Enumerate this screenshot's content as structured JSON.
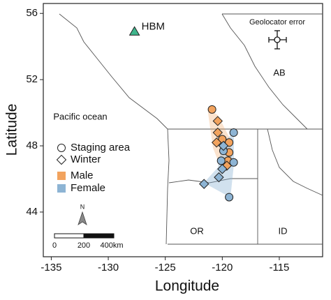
{
  "chart_data": {
    "type": "scatter",
    "xlabel": "Longitude",
    "ylabel": "Latitude",
    "xlim": [
      -135.7,
      -111.2
    ],
    "ylim": [
      41.3,
      56.6
    ],
    "xticks": [
      -135,
      -130,
      -125,
      -120,
      -115
    ],
    "yticks": [
      44,
      48,
      52,
      56
    ],
    "series": [
      {
        "color": "#f2a35e",
        "marker": "circle",
        "x": [
          -120.9,
          -120.0,
          -119.4,
          -119.4,
          -119.5
        ],
        "y": [
          50.2,
          48.4,
          48.2,
          47.6,
          47.1
        ]
      },
      {
        "color": "#f2a35e",
        "marker": "diamond",
        "x": [
          -120.4,
          -120.4,
          -120.5,
          -119.6
        ],
        "y": [
          49.5,
          48.8,
          48.2,
          46.8
        ]
      },
      {
        "color": "#8db4d4",
        "marker": "circle",
        "x": [
          -119.0,
          -119.9,
          -119.0,
          -120.1,
          -119.4
        ],
        "y": [
          48.8,
          47.7,
          47.0,
          47.1,
          44.9
        ]
      },
      {
        "color": "#8db4d4",
        "marker": "diamond",
        "x": [
          -119.9,
          -120.0,
          -120.3,
          -121.6
        ],
        "y": [
          48.0,
          46.6,
          46.1,
          45.7
        ]
      }
    ],
    "site": {
      "label": "HBM",
      "x": -127.7,
      "y": 54.9,
      "color": "#3fb58c"
    },
    "legend": {
      "shapes": [
        "Staging area",
        "Winter"
      ],
      "colors": [
        {
          "name": "Male",
          "color": "#f2a35e"
        },
        {
          "name": "Female",
          "color": "#8db4d4"
        }
      ]
    },
    "annotations": {
      "error": "Geolocator error",
      "ocean": "Pacific ocean",
      "regions": [
        "AB",
        "OR",
        "ID"
      ]
    },
    "scale_bar": [
      "0",
      "200",
      "400km"
    ],
    "north": "N"
  }
}
